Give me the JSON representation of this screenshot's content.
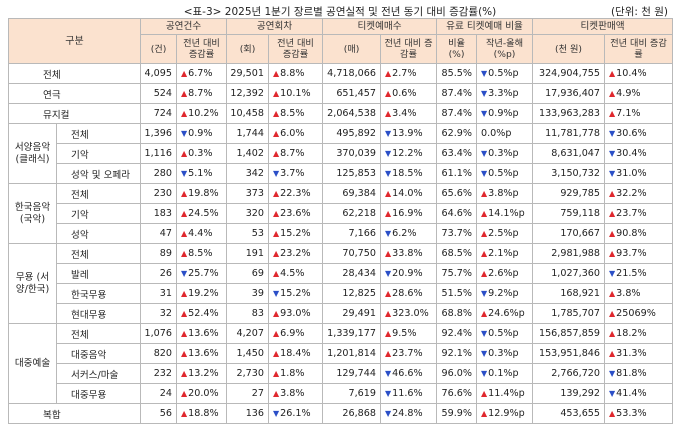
{
  "title": "<표-3> 2025년 1분기 장르별 공연실적 및 전년 동기 대비 증감률(%)",
  "unit": "(단위: 천 원)",
  "header": {
    "gubun": "구분",
    "groups": [
      "공연건수",
      "공연회차",
      "티켓예매수",
      "유료 티켓예매 비율",
      "티켓판매액"
    ],
    "sub": [
      "(건)",
      "전년 대비 증감률",
      "(회)",
      "전년 대비 증감률",
      "(매)",
      "전년 대비 증감률",
      "비율 (%)",
      "작년-올해 (%p)",
      "(천 원)",
      "전년 대비 증감률"
    ]
  },
  "rows": [
    {
      "lbl": "전체",
      "c": "4,095",
      "cd": "up",
      "cv": "6.7%",
      "s": "29,501",
      "sd": "up",
      "sv": "8.8%",
      "t": "4,718,066",
      "td": "up",
      "tv": "2.7%",
      "p": "85.5%",
      "pd": "dn",
      "pv": "0.5%p",
      "a": "324,904,755",
      "ad": "up",
      "av": "10.4%"
    },
    {
      "lbl": "연극",
      "c": "524",
      "cd": "up",
      "cv": "8.7%",
      "s": "12,392",
      "sd": "up",
      "sv": "10.1%",
      "t": "651,457",
      "td": "up",
      "tv": "0.6%",
      "p": "87.4%",
      "pd": "dn",
      "pv": "3.3%p",
      "a": "17,936,407",
      "ad": "up",
      "av": "4.9%"
    },
    {
      "lbl": "뮤지컬",
      "c": "724",
      "cd": "up",
      "cv": "10.2%",
      "s": "10,458",
      "sd": "up",
      "sv": "8.5%",
      "t": "2,064,538",
      "td": "up",
      "tv": "3.4%",
      "p": "87.4%",
      "pd": "dn",
      "pv": "0.9%p",
      "a": "133,963,283",
      "ad": "up",
      "av": "7.1%"
    }
  ],
  "groups": [
    {
      "label": "서양음악 (클래식)",
      "rows": [
        {
          "lbl": "전체",
          "c": "1,396",
          "cd": "dn",
          "cv": "0.9%",
          "s": "1,744",
          "sd": "up",
          "sv": "6.0%",
          "t": "495,892",
          "td": "dn",
          "tv": "13.9%",
          "p": "62.9%",
          "pd": "",
          "pv": "0.0%p",
          "a": "11,781,778",
          "ad": "dn",
          "av": "30.6%"
        },
        {
          "lbl": "기악",
          "c": "1,116",
          "cd": "up",
          "cv": "0.3%",
          "s": "1,402",
          "sd": "up",
          "sv": "8.7%",
          "t": "370,039",
          "td": "dn",
          "tv": "12.2%",
          "p": "63.4%",
          "pd": "dn",
          "pv": "0.3%p",
          "a": "8,631,047",
          "ad": "dn",
          "av": "30.4%"
        },
        {
          "lbl": "성악 및 오페라",
          "c": "280",
          "cd": "dn",
          "cv": "5.1%",
          "s": "342",
          "sd": "dn",
          "sv": "3.7%",
          "t": "125,853",
          "td": "dn",
          "tv": "18.5%",
          "p": "61.1%",
          "pd": "dn",
          "pv": "0.5%p",
          "a": "3,150,732",
          "ad": "dn",
          "av": "31.0%"
        }
      ]
    },
    {
      "label": "한국음악 (국악)",
      "rows": [
        {
          "lbl": "전체",
          "c": "230",
          "cd": "up",
          "cv": "19.8%",
          "s": "373",
          "sd": "up",
          "sv": "22.3%",
          "t": "69,384",
          "td": "up",
          "tv": "14.0%",
          "p": "65.6%",
          "pd": "up",
          "pv": "3.8%p",
          "a": "929,785",
          "ad": "up",
          "av": "32.2%"
        },
        {
          "lbl": "기악",
          "c": "183",
          "cd": "up",
          "cv": "24.5%",
          "s": "320",
          "sd": "up",
          "sv": "23.6%",
          "t": "62,218",
          "td": "up",
          "tv": "16.9%",
          "p": "64.6%",
          "pd": "up",
          "pv": "14.1%p",
          "a": "759,118",
          "ad": "up",
          "av": "23.7%"
        },
        {
          "lbl": "성악",
          "c": "47",
          "cd": "up",
          "cv": "4.4%",
          "s": "53",
          "sd": "up",
          "sv": "15.2%",
          "t": "7,166",
          "td": "dn",
          "tv": "6.2%",
          "p": "73.7%",
          "pd": "up",
          "pv": "2.5%p",
          "a": "170,667",
          "ad": "up",
          "av": "90.8%"
        }
      ]
    },
    {
      "label": "무용 (서양/한국)",
      "rows": [
        {
          "lbl": "전체",
          "c": "89",
          "cd": "up",
          "cv": "8.5%",
          "s": "191",
          "sd": "up",
          "sv": "23.2%",
          "t": "70,750",
          "td": "up",
          "tv": "33.8%",
          "p": "68.5%",
          "pd": "up",
          "pv": "2.1%p",
          "a": "2,981,988",
          "ad": "up",
          "av": "93.7%"
        },
        {
          "lbl": "발레",
          "c": "26",
          "cd": "dn",
          "cv": "25.7%",
          "s": "69",
          "sd": "up",
          "sv": "4.5%",
          "t": "28,434",
          "td": "dn",
          "tv": "20.9%",
          "p": "75.7%",
          "pd": "up",
          "pv": "2.6%p",
          "a": "1,027,360",
          "ad": "dn",
          "av": "21.5%"
        },
        {
          "lbl": "한국무용",
          "c": "31",
          "cd": "up",
          "cv": "19.2%",
          "s": "39",
          "sd": "dn",
          "sv": "15.2%",
          "t": "12,825",
          "td": "up",
          "tv": "28.6%",
          "p": "51.5%",
          "pd": "dn",
          "pv": "9.2%p",
          "a": "168,921",
          "ad": "up",
          "av": "3.8%"
        },
        {
          "lbl": "현대무용",
          "c": "32",
          "cd": "up",
          "cv": "52.4%",
          "s": "83",
          "sd": "up",
          "sv": "93.0%",
          "t": "29,491",
          "td": "up",
          "tv": "323.0%",
          "p": "68.8%",
          "pd": "up",
          "pv": "24.6%p",
          "a": "1,785,707",
          "ad": "up",
          "av": "25069%"
        }
      ]
    },
    {
      "label": "대중예술",
      "rows": [
        {
          "lbl": "전체",
          "c": "1,076",
          "cd": "up",
          "cv": "13.6%",
          "s": "4,207",
          "sd": "up",
          "sv": "6.9%",
          "t": "1,339,177",
          "td": "up",
          "tv": "9.5%",
          "p": "92.4%",
          "pd": "dn",
          "pv": "0.5%p",
          "a": "156,857,859",
          "ad": "up",
          "av": "18.2%"
        },
        {
          "lbl": "대중음악",
          "c": "820",
          "cd": "up",
          "cv": "13.6%",
          "s": "1,450",
          "sd": "up",
          "sv": "18.4%",
          "t": "1,201,814",
          "td": "up",
          "tv": "23.7%",
          "p": "92.1%",
          "pd": "dn",
          "pv": "0.3%p",
          "a": "153,951,846",
          "ad": "up",
          "av": "31.3%"
        },
        {
          "lbl": "서커스/마술",
          "c": "232",
          "cd": "up",
          "cv": "13.2%",
          "s": "2,730",
          "sd": "up",
          "sv": "1.8%",
          "t": "129,744",
          "td": "dn",
          "tv": "46.6%",
          "p": "96.0%",
          "pd": "dn",
          "pv": "0.1%p",
          "a": "2,766,720",
          "ad": "dn",
          "av": "81.8%"
        },
        {
          "lbl": "대중무용",
          "c": "24",
          "cd": "up",
          "cv": "20.0%",
          "s": "27",
          "sd": "up",
          "sv": "3.8%",
          "t": "7,619",
          "td": "dn",
          "tv": "11.6%",
          "p": "76.6%",
          "pd": "up",
          "pv": "11.4%p",
          "a": "139,292",
          "ad": "dn",
          "av": "41.4%"
        }
      ]
    }
  ],
  "last": {
    "lbl": "복합",
    "c": "56",
    "cd": "up",
    "cv": "18.8%",
    "s": "136",
    "sd": "dn",
    "sv": "26.1%",
    "t": "26,868",
    "td": "dn",
    "tv": "24.8%",
    "p": "59.9%",
    "pd": "up",
    "pv": "12.9%p",
    "a": "453,655",
    "ad": "up",
    "av": "53.3%"
  }
}
